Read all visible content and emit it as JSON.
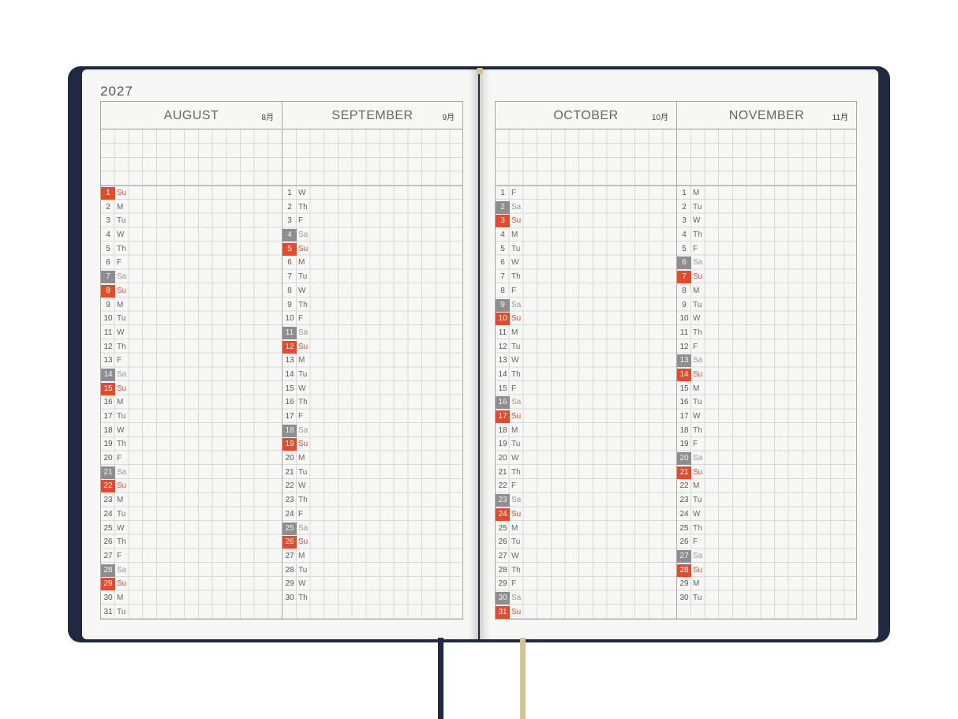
{
  "year": "2027",
  "months": [
    {
      "name": "AUGUST",
      "kanji": "8月",
      "days": 31,
      "first_dow": 6
    },
    {
      "name": "SEPTEMBER",
      "kanji": "9月",
      "days": 30,
      "first_dow": 2
    },
    {
      "name": "OCTOBER",
      "kanji": "10月",
      "days": 31,
      "first_dow": 4
    },
    {
      "name": "NOVEMBER",
      "kanji": "11月",
      "days": 30,
      "first_dow": 0
    }
  ],
  "weekday_abbr": [
    "M",
    "Tu",
    "W",
    "Th",
    "F",
    "Sa",
    "Su"
  ],
  "colors": {
    "cover": "#1f2a40",
    "sunday": "#e54a2b",
    "saturday": "#8e8e91",
    "ribbon_navy": "#1f2a44",
    "ribbon_gold": "#d6c193"
  }
}
